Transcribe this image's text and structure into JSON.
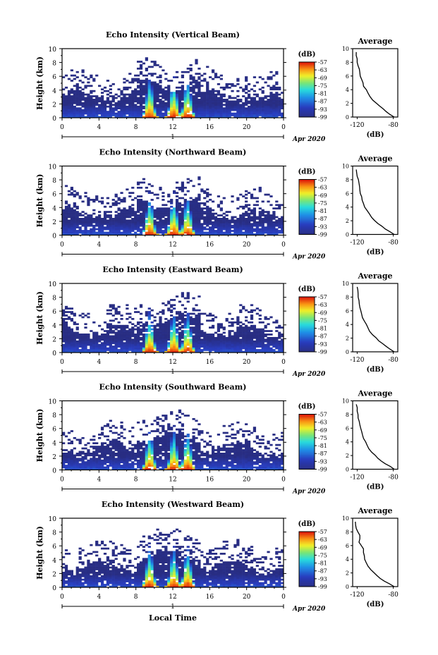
{
  "figure": {
    "xlabel": "Local Time",
    "colorbar_unit": "(dB)",
    "date_label": "Apr 2020",
    "avg_title": "Average",
    "avg_xlabel": "(dB)"
  },
  "chart_data": [
    {
      "type": "heatmap",
      "title": "Echo Intensity (Vertical Beam)",
      "ylabel": "Height (km)",
      "xlabel": "",
      "x_ticks": [
        "0",
        "4",
        "8",
        "12",
        "16",
        "20",
        "0"
      ],
      "day_label": "1",
      "y_ticks": [
        "0",
        "2",
        "4",
        "6",
        "8",
        "10"
      ],
      "xlim": [
        0,
        24
      ],
      "ylim": [
        0,
        10
      ],
      "colorbar": {
        "label": "(dB)",
        "ticks": [
          "-57",
          "-63",
          "-69",
          "-75",
          "-81",
          "-87",
          "-93",
          "-99"
        ]
      },
      "date": "Apr 2020",
      "average": {
        "title": "Average",
        "xlabel": "(dB)",
        "x_ticks": [
          "-120",
          "-80"
        ],
        "xlim": [
          -125,
          -75
        ],
        "profile": [
          [
            -79,
            0
          ],
          [
            -88,
            0.8
          ],
          [
            -95,
            1.6
          ],
          [
            -103,
            2.5
          ],
          [
            -108,
            3.5
          ],
          [
            -113,
            4.5
          ],
          [
            -115,
            5.5
          ],
          [
            -117,
            6.5
          ],
          [
            -119,
            7.5
          ],
          [
            -120,
            8.5
          ],
          [
            -121,
            9.5
          ]
        ]
      }
    },
    {
      "type": "heatmap",
      "title": "Echo Intensity (Northward Beam)",
      "ylabel": "Height (km)",
      "xlabel": "",
      "x_ticks": [
        "0",
        "4",
        "8",
        "12",
        "16",
        "20",
        "0"
      ],
      "day_label": "1",
      "y_ticks": [
        "0",
        "2",
        "4",
        "6",
        "8",
        "10"
      ],
      "xlim": [
        0,
        24
      ],
      "ylim": [
        0,
        10
      ],
      "colorbar": {
        "label": "(dB)",
        "ticks": [
          "-57",
          "-63",
          "-69",
          "-75",
          "-81",
          "-87",
          "-93",
          "-99"
        ]
      },
      "date": "Apr 2020",
      "average": {
        "title": "Average",
        "xlabel": "(dB)",
        "x_ticks": [
          "-120",
          "-80"
        ],
        "xlim": [
          -125,
          -75
        ],
        "profile": [
          [
            -79,
            0
          ],
          [
            -89,
            0.8
          ],
          [
            -97,
            1.6
          ],
          [
            -104,
            2.5
          ],
          [
            -109,
            3.5
          ],
          [
            -113,
            4.5
          ],
          [
            -115,
            5.5
          ],
          [
            -117,
            6.5
          ],
          [
            -118,
            7.5
          ],
          [
            -120,
            8.5
          ],
          [
            -121,
            9.5
          ]
        ]
      }
    },
    {
      "type": "heatmap",
      "title": "Echo Intensity (Eastward Beam)",
      "ylabel": "Height (km)",
      "xlabel": "",
      "x_ticks": [
        "0",
        "4",
        "8",
        "12",
        "16",
        "20",
        "0"
      ],
      "day_label": "1",
      "y_ticks": [
        "0",
        "2",
        "4",
        "6",
        "8",
        "10"
      ],
      "xlim": [
        0,
        24
      ],
      "ylim": [
        0,
        10
      ],
      "colorbar": {
        "label": "(dB)",
        "ticks": [
          "-57",
          "-63",
          "-69",
          "-75",
          "-81",
          "-87",
          "-93",
          "-99"
        ]
      },
      "date": "Apr 2020",
      "average": {
        "title": "Average",
        "xlabel": "(dB)",
        "x_ticks": [
          "-120",
          "-80"
        ],
        "xlim": [
          -125,
          -75
        ],
        "profile": [
          [
            -79,
            0
          ],
          [
            -88,
            0.8
          ],
          [
            -96,
            1.6
          ],
          [
            -103,
            2.5
          ],
          [
            -108,
            3.5
          ],
          [
            -112,
            4.5
          ],
          [
            -115,
            5.5
          ],
          [
            -117,
            6.5
          ],
          [
            -118,
            7.5
          ],
          [
            -119,
            8.5
          ],
          [
            -120,
            9.5
          ]
        ]
      }
    },
    {
      "type": "heatmap",
      "title": "Echo Intensity (Southward Beam)",
      "ylabel": "Height (km)",
      "xlabel": "",
      "x_ticks": [
        "0",
        "4",
        "8",
        "12",
        "16",
        "20",
        "0"
      ],
      "day_label": "1",
      "y_ticks": [
        "0",
        "2",
        "4",
        "6",
        "8",
        "10"
      ],
      "xlim": [
        0,
        24
      ],
      "ylim": [
        0,
        10
      ],
      "colorbar": {
        "label": "(dB)",
        "ticks": [
          "-57",
          "-63",
          "-69",
          "-75",
          "-81",
          "-87",
          "-93",
          "-99"
        ]
      },
      "date": "Apr 2020",
      "average": {
        "title": "Average",
        "xlabel": "(dB)",
        "x_ticks": [
          "-120",
          "-80"
        ],
        "xlim": [
          -125,
          -75
        ],
        "profile": [
          [
            -79,
            0
          ],
          [
            -89,
            0.8
          ],
          [
            -97,
            1.6
          ],
          [
            -104,
            2.5
          ],
          [
            -109,
            3.5
          ],
          [
            -113,
            4.5
          ],
          [
            -115,
            5.5
          ],
          [
            -117,
            6.5
          ],
          [
            -119,
            7.5
          ],
          [
            -120,
            8.5
          ],
          [
            -121,
            9.5
          ]
        ]
      }
    },
    {
      "type": "heatmap",
      "title": "Echo Intensity (Westward Beam)",
      "ylabel": "Height (km)",
      "xlabel": "Local Time",
      "x_ticks": [
        "0",
        "4",
        "8",
        "12",
        "16",
        "20",
        "0"
      ],
      "day_label": "1",
      "y_ticks": [
        "0",
        "2",
        "4",
        "6",
        "8",
        "10"
      ],
      "xlim": [
        0,
        24
      ],
      "ylim": [
        0,
        10
      ],
      "colorbar": {
        "label": "(dB)",
        "ticks": [
          "-57",
          "-63",
          "-69",
          "-75",
          "-81",
          "-87",
          "-93",
          "-99"
        ]
      },
      "date": "Apr 2020",
      "average": {
        "title": "Average",
        "xlabel": "(dB)",
        "x_ticks": [
          "-120",
          "-80"
        ],
        "xlim": [
          -125,
          -75
        ],
        "profile": [
          [
            -79,
            0
          ],
          [
            -90,
            0.8
          ],
          [
            -98,
            1.6
          ],
          [
            -105,
            2.5
          ],
          [
            -110,
            3.5
          ],
          [
            -112,
            4.5
          ],
          [
            -113,
            5.5
          ],
          [
            -118,
            6.5
          ],
          [
            -117,
            7.5
          ],
          [
            -121,
            8.5
          ],
          [
            -122,
            9.5
          ]
        ]
      }
    }
  ]
}
